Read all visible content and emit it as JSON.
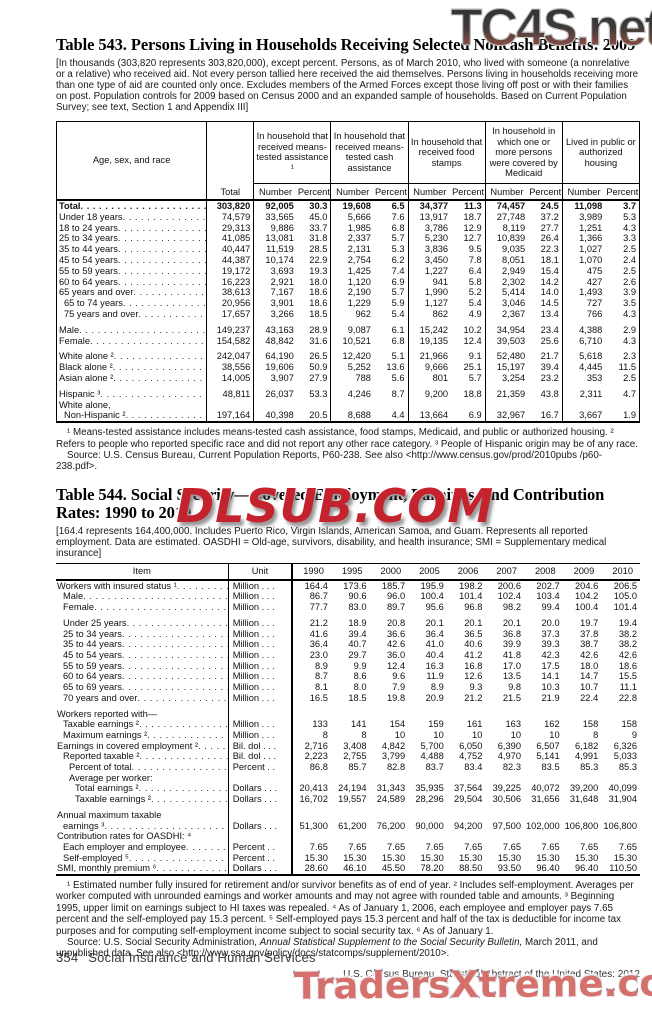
{
  "watermarks": {
    "top": "TC4S.net",
    "middle": "DLSUB.COM",
    "bottom": "TradersXtreme.com"
  },
  "footer": {
    "page": "354",
    "section": "Social Insurance and Human Services",
    "credit": "U.S. Census Bureau, Statistical Abstract of the United States: 2012"
  },
  "table543": {
    "title": "Table 543. Persons Living in Households Receiving Selected Noncash Benefits: 2009",
    "note": "[In thousands (303,820 represents 303,820,000), except percent. Persons, as of March 2010, who lived with someone (a nonrelative or a relative) who received aid. Not every person tallied here received the aid themselves. Persons living in households receiving more than one type of aid are counted only once. Excludes members of the Armed Forces except those living off post or with their families on post. Population controls for 2009 based on Census 2000 and an expanded sample of households. Based on Current Population Survey; see text, Section 1 and Appendix III]",
    "header": {
      "row_label": "Age, sex, and race",
      "total": "Total",
      "groups": [
        "In household that received means-tested assistance ¹",
        "In household that received means-tested cash assistance",
        "In household that received food stamps",
        "In household in which one or more persons were covered by Medicaid",
        "Lived in public or authorized housing"
      ],
      "subcols": [
        "Number",
        "Percent"
      ]
    },
    "rows": [
      {
        "label": "Total",
        "bold": true,
        "values": [
          "303,820",
          "92,005",
          "30.3",
          "19,608",
          "6.5",
          "34,377",
          "11.3",
          "74,457",
          "24.5",
          "11,098",
          "3.7"
        ]
      },
      {
        "label": "Under 18 years",
        "values": [
          "74,579",
          "33,565",
          "45.0",
          "5,666",
          "7.6",
          "13,917",
          "18.7",
          "27,748",
          "37.2",
          "3,989",
          "5.3"
        ]
      },
      {
        "label": "18 to 24 years",
        "values": [
          "29,313",
          "9,886",
          "33.7",
          "1,985",
          "6.8",
          "3,786",
          "12.9",
          "8,119",
          "27.7",
          "1,251",
          "4.3"
        ]
      },
      {
        "label": "25 to 34 years",
        "values": [
          "41,085",
          "13,081",
          "31.8",
          "2,337",
          "5.7",
          "5,230",
          "12.7",
          "10,839",
          "26.4",
          "1,366",
          "3.3"
        ]
      },
      {
        "label": "35 to 44 years",
        "values": [
          "40,447",
          "11,519",
          "28.5",
          "2,131",
          "5.3",
          "3,836",
          "9.5",
          "9,035",
          "22.3",
          "1,027",
          "2.5"
        ]
      },
      {
        "label": "45 to 54 years",
        "values": [
          "44,387",
          "10,174",
          "22.9",
          "2,754",
          "6.2",
          "3,450",
          "7.8",
          "8,051",
          "18.1",
          "1,070",
          "2.4"
        ]
      },
      {
        "label": "55 to 59 years",
        "values": [
          "19,172",
          "3,693",
          "19.3",
          "1,425",
          "7.4",
          "1,227",
          "6.4",
          "2,949",
          "15.4",
          "475",
          "2.5"
        ]
      },
      {
        "label": "60 to 64 years",
        "values": [
          "16,223",
          "2,921",
          "18.0",
          "1,120",
          "6.9",
          "941",
          "5.8",
          "2,302",
          "14.2",
          "427",
          "2.6"
        ]
      },
      {
        "label": "65 years and over",
        "values": [
          "38,613",
          "7,167",
          "18.6",
          "2,190",
          "5.7",
          "1,990",
          "5.2",
          "5,414",
          "14.0",
          "1,493",
          "3.9"
        ]
      },
      {
        "label": "65 to 74 years",
        "indent": 1,
        "values": [
          "20,956",
          "3,901",
          "18.6",
          "1,229",
          "5.9",
          "1,127",
          "5.4",
          "3,046",
          "14.5",
          "727",
          "3.5"
        ]
      },
      {
        "label": "75 years and over",
        "indent": 1,
        "values": [
          "17,657",
          "3,266",
          "18.5",
          "962",
          "5.4",
          "862",
          "4.9",
          "2,367",
          "13.4",
          "766",
          "4.3"
        ]
      },
      {
        "label": "Male",
        "gap": true,
        "values": [
          "149,237",
          "43,163",
          "28.9",
          "9,087",
          "6.1",
          "15,242",
          "10.2",
          "34,954",
          "23.4",
          "4,388",
          "2.9"
        ]
      },
      {
        "label": "Female",
        "values": [
          "154,582",
          "48,842",
          "31.6",
          "10,521",
          "6.8",
          "19,135",
          "12.4",
          "39,503",
          "25.6",
          "6,710",
          "4.3"
        ]
      },
      {
        "label": "White alone ²",
        "gap": true,
        "values": [
          "242,047",
          "64,190",
          "26.5",
          "12,420",
          "5.1",
          "21,966",
          "9.1",
          "52,480",
          "21.7",
          "5,618",
          "2.3"
        ]
      },
      {
        "label": "Black alone ²",
        "values": [
          "38,556",
          "19,606",
          "50.9",
          "5,252",
          "13.6",
          "9,666",
          "25.1",
          "15,197",
          "39.4",
          "4,445",
          "11.5"
        ]
      },
      {
        "label": "Asian alone ²",
        "values": [
          "14,005",
          "3,907",
          "27.9",
          "788",
          "5.6",
          "801",
          "5.7",
          "3,254",
          "23.2",
          "353",
          "2.5"
        ]
      },
      {
        "label": "Hispanic ³",
        "gap": true,
        "values": [
          "48,811",
          "26,037",
          "53.3",
          "4,246",
          "8.7",
          "9,200",
          "18.8",
          "21,359",
          "43.8",
          "2,311",
          "4.7"
        ]
      },
      {
        "label": "White alone,",
        "label2": "Non-Hispanic ²",
        "label2_indent": 1,
        "values": [
          "197,164",
          "40,398",
          "20.5",
          "8,688",
          "4.4",
          "13,664",
          "6.9",
          "32,967",
          "16.7",
          "3,667",
          "1.9"
        ]
      }
    ],
    "footnote": "¹ Means-tested assistance includes means-tested cash assistance, food stamps, Medicaid, and public or authorized housing. ² Refers to people who reported specific race and did not report any other race category. ³ People of Hispanic origin may be of any race.",
    "source": "Source: U.S. Census Bureau, Current Population Reports,  P60-238. See also <http://www.census.gov/prod/2010pubs /p60-238.pdf>."
  },
  "table544": {
    "title": "Table 544. Social Security—Covered Employment, Earnings, and Contribution Rates: 1990 to 2010",
    "note": "[164.4 represents 164,400,000. Includes Puerto Rico, Virgin Islands, American Samoa, and Guam. Represents all reported employment. Data are estimated. OASDHI = Old-age, survivors, disability, and health insurance; SMI = Supplementary medical insurance]",
    "header": {
      "item": "Item",
      "unit": "Unit",
      "years": [
        "1990",
        "1995",
        "2000",
        "2005",
        "2006",
        "2007",
        "2008",
        "2009",
        "2010"
      ]
    },
    "rows": [
      {
        "label": "Workers with insured status ¹",
        "unit": "Million . . .",
        "values": [
          "164.4",
          "173.6",
          "185.7",
          "195.9",
          "198.2",
          "200.6",
          "202.7",
          "204.6",
          "206.5"
        ]
      },
      {
        "label": "Male",
        "indent": 1,
        "unit": "Million . . .",
        "values": [
          "86.7",
          "90.6",
          "96.0",
          "100.4",
          "101.4",
          "102.4",
          "103.4",
          "104.2",
          "105.0"
        ]
      },
      {
        "label": "Female",
        "indent": 1,
        "unit": "Million . . .",
        "values": [
          "77.7",
          "83.0",
          "89.7",
          "95.6",
          "96.8",
          "98.2",
          "99.4",
          "100.4",
          "101.4"
        ]
      },
      {
        "label": "Under 25 years",
        "indent": 1,
        "gap": true,
        "unit": "Million . . .",
        "values": [
          "21.2",
          "18.9",
          "20.8",
          "20.1",
          "20.1",
          "20.1",
          "20.0",
          "19.7",
          "19.4"
        ]
      },
      {
        "label": "25 to 34 years",
        "indent": 1,
        "unit": "Million . . .",
        "values": [
          "41.6",
          "39.4",
          "36.6",
          "36.4",
          "36.5",
          "36.8",
          "37.3",
          "37.8",
          "38.2"
        ]
      },
      {
        "label": "35 to 44 years",
        "indent": 1,
        "unit": "Million . . .",
        "values": [
          "36.4",
          "40.7",
          "42.6",
          "41.0",
          "40.6",
          "39.9",
          "39.3",
          "38.7",
          "38.2"
        ]
      },
      {
        "label": "45 to 54 years",
        "indent": 1,
        "unit": "Million . . .",
        "values": [
          "23.0",
          "29.7",
          "36.0",
          "40.4",
          "41.2",
          "41.8",
          "42.3",
          "42.6",
          "42.6"
        ]
      },
      {
        "label": "55 to 59 years",
        "indent": 1,
        "unit": "Million . . .",
        "values": [
          "8.9",
          "9.9",
          "12.4",
          "16.3",
          "16.8",
          "17.0",
          "17.5",
          "18.0",
          "18.6"
        ]
      },
      {
        "label": "60 to 64 years",
        "indent": 1,
        "unit": "Million . . .",
        "values": [
          "8.7",
          "8.6",
          "9.6",
          "11.9",
          "12.6",
          "13.5",
          "14.1",
          "14.7",
          "15.5"
        ]
      },
      {
        "label": "65 to 69 years",
        "indent": 1,
        "unit": "Million . . .",
        "values": [
          "8.1",
          "8.0",
          "7.9",
          "8.9",
          "9.3",
          "9.8",
          "10.3",
          "10.7",
          "11.1"
        ]
      },
      {
        "label": "70 years and over",
        "indent": 1,
        "unit": "Million . . .",
        "values": [
          "16.5",
          "18.5",
          "19.8",
          "20.9",
          "21.2",
          "21.5",
          "21.9",
          "22.4",
          "22.8"
        ]
      },
      {
        "label": "Workers reported with—",
        "gap": true,
        "noDots": true,
        "unit": "",
        "values": [
          "",
          "",
          "",
          "",
          "",
          "",
          "",
          "",
          ""
        ]
      },
      {
        "label": "Taxable earnings ²",
        "indent": 1,
        "unit": "Million . . .",
        "values": [
          "133",
          "141",
          "154",
          "159",
          "161",
          "163",
          "162",
          "158",
          "158"
        ]
      },
      {
        "label": "Maximum earnings ²",
        "indent": 1,
        "unit": "Million . . .",
        "values": [
          "8",
          "8",
          "10",
          "10",
          "10",
          "10",
          "10",
          "8",
          "9"
        ]
      },
      {
        "label": "Earnings in covered employment ²",
        "unit": "Bil. dol . . .",
        "values": [
          "2,716",
          "3,408",
          "4,842",
          "5,700",
          "6,050",
          "6,390",
          "6,507",
          "6,182",
          "6,326"
        ]
      },
      {
        "label": "Reported taxable ²",
        "indent": 1,
        "unit": "Bil. dol . . .",
        "values": [
          "2,223",
          "2,755",
          "3,799",
          "4,488",
          "4,752",
          "4,970",
          "5,141",
          "4,991",
          "5,033"
        ]
      },
      {
        "label": "Percent of total",
        "indent": 2,
        "unit": "Percent . .",
        "values": [
          "86.8",
          "85.7",
          "82.8",
          "83.7",
          "83.4",
          "82.3",
          "83.5",
          "85.3",
          "85.3"
        ]
      },
      {
        "label": "Average per worker:",
        "indent": 2,
        "noDots": true,
        "unit": "",
        "values": [
          "",
          "",
          "",
          "",
          "",
          "",
          "",
          "",
          ""
        ]
      },
      {
        "label": "Total earnings ²",
        "indent": 3,
        "unit": "Dollars . . .",
        "values": [
          "20,413",
          "24,194",
          "31,343",
          "35,935",
          "37,564",
          "39,225",
          "40,072",
          "39,200",
          "40,099"
        ]
      },
      {
        "label": "Taxable earnings ²",
        "indent": 3,
        "unit": "Dollars . . .",
        "values": [
          "16,702",
          "19,557",
          "24,589",
          "28,296",
          "29,504",
          "30,506",
          "31,656",
          "31,648",
          "31,904"
        ]
      },
      {
        "label": "Annual maximum taxable",
        "label2": "earnings ³",
        "label2_indent": 1,
        "gap": true,
        "unit": "Dollars . . .",
        "values": [
          "51,300",
          "61,200",
          "76,200",
          "90,000",
          "94,200",
          "97,500",
          "102,000",
          "106,800",
          "106,800"
        ]
      },
      {
        "label": "Contribution rates for OASDHI: ⁴",
        "noDots": true,
        "unit": "",
        "values": [
          "",
          "",
          "",
          "",
          "",
          "",
          "",
          "",
          ""
        ]
      },
      {
        "label": "Each employer and employee",
        "indent": 1,
        "unit": "Percent . .",
        "values": [
          "7.65",
          "7.65",
          "7.65",
          "7.65",
          "7.65",
          "7.65",
          "7.65",
          "7.65",
          "7.65"
        ]
      },
      {
        "label": "Self-employed ⁵",
        "indent": 1,
        "unit": "Percent . .",
        "values": [
          "15.30",
          "15.30",
          "15.30",
          "15.30",
          "15.30",
          "15.30",
          "15.30",
          "15.30",
          "15.30"
        ]
      },
      {
        "label": "SMI, monthly premium ⁶",
        "unit": "Dollars . . .",
        "values": [
          "28.60",
          "46.10",
          "45.50",
          "78.20",
          "88.50",
          "93.50",
          "96.40",
          "96.40",
          "110.50"
        ]
      }
    ],
    "footnote": "¹ Estimated number fully insured for retirement and/or survivor benefits as of end of year. ² Includes self-employment. Averages per worker computed with unrounded earnings and worker amounts and may not agree with rounded table and amounts. ³ Beginning 1995, upper limit on earnings subject to HI taxes was repealed. ⁴ As of January 1, 2006, each employee and employer pays 7.65 percent and the self-employed pay 15.3 percent. ⁵ Self-employed pays 15.3 percent and half of the tax is deductible for income tax purposes and for computing self-employment income subject to social security tax. ⁶ As of January 1.",
    "source_prefix": "Source: U.S. Social Security Administration, ",
    "source_italic": "Annual Statistical Supplement to the Social Security Bulletin,",
    "source_suffix": " March 2011, and unpublished data. See also <http://www.ssa.gov/policy/docs/statcomps/supplement/2010>."
  }
}
